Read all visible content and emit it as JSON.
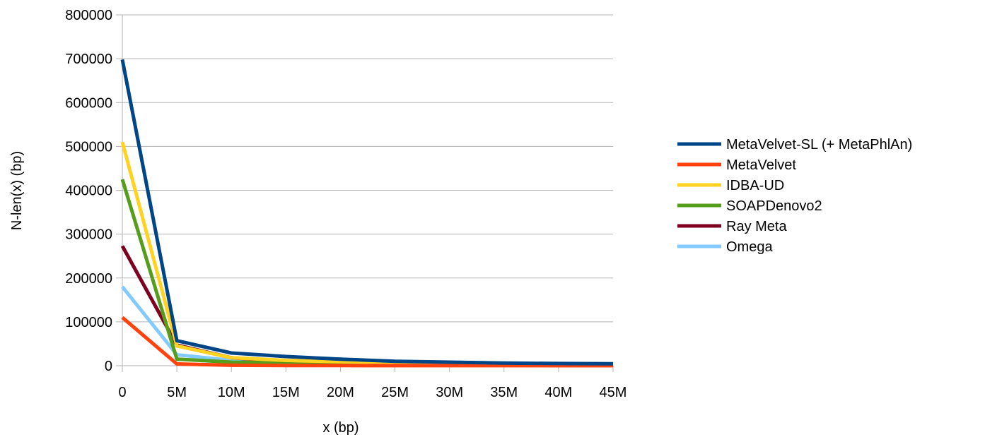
{
  "chart_data": {
    "type": "line",
    "xlabel": "x (bp)",
    "ylabel": "N-len(x) (bp)",
    "x": [
      0,
      5000000,
      10000000,
      15000000,
      20000000,
      25000000,
      30000000,
      35000000,
      40000000,
      45000000
    ],
    "xticks": [
      "0",
      "5M",
      "10M",
      "15M",
      "20M",
      "25M",
      "30M",
      "35M",
      "40M",
      "45M"
    ],
    "xlim": [
      0,
      45000000
    ],
    "ylim": [
      0,
      800000
    ],
    "yticks": [
      "0",
      "100000",
      "200000",
      "300000",
      "400000",
      "500000",
      "600000",
      "700000",
      "800000"
    ],
    "grid": "horizontal",
    "legend_position": "right",
    "series": [
      {
        "name": "MetaVelvet-SL (+ MetaPhlAn)",
        "color": "#004586",
        "values": [
          698000,
          57000,
          29000,
          21000,
          15000,
          10000,
          8000,
          6000,
          5000,
          4500
        ]
      },
      {
        "name": "MetaVelvet",
        "color": "#ff420e",
        "values": [
          110000,
          4000,
          1000,
          500,
          300,
          200,
          100,
          100,
          100,
          100
        ]
      },
      {
        "name": "IDBA-UD",
        "color": "#ffd320",
        "values": [
          510000,
          45000,
          18000,
          12000,
          9000,
          7000,
          6000,
          5000,
          4500,
          4000
        ]
      },
      {
        "name": "SOAPDenovo2",
        "color": "#579d1c",
        "values": [
          425000,
          15000,
          8000,
          6000,
          5000,
          4500,
          4000,
          3800,
          3600,
          3500
        ]
      },
      {
        "name": "Ray Meta",
        "color": "#7e0021",
        "values": [
          273000,
          47000,
          18000,
          10000,
          6000,
          3000,
          1500,
          800,
          500,
          300
        ]
      },
      {
        "name": "Omega",
        "color": "#83caff",
        "values": [
          180000,
          25000,
          12000,
          8000,
          5000,
          3000,
          2000,
          1500,
          1200,
          1000
        ]
      }
    ]
  }
}
